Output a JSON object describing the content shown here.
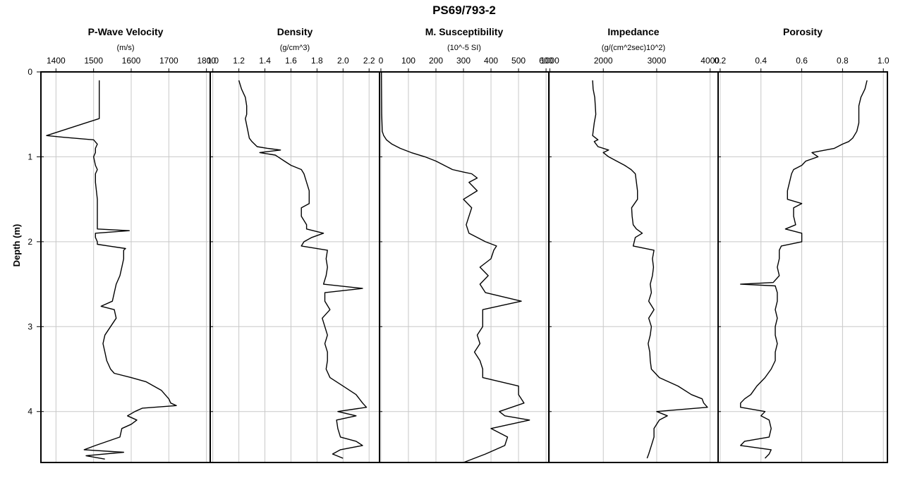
{
  "chart_data": {
    "type": "line",
    "title": "PS69/793-2",
    "ylabel": "Depth (m)",
    "ylim": [
      0,
      4.6
    ],
    "yinvert": true,
    "yticks": [
      0,
      1,
      2,
      3,
      4
    ],
    "grid": true,
    "panels": [
      {
        "name": "P-Wave Velocity",
        "unit": "(m/s)",
        "xlim": [
          1360,
          1810
        ],
        "xticks": [
          1400,
          1500,
          1600,
          1700,
          1800
        ],
        "depth": [
          0.1,
          0.55,
          0.75,
          0.77,
          0.8,
          0.85,
          0.9,
          0.95,
          1.0,
          1.1,
          1.15,
          1.2,
          1.3,
          1.5,
          1.7,
          1.85,
          1.87,
          1.9,
          1.95,
          2.0,
          2.03,
          2.05,
          2.08,
          2.1,
          2.2,
          2.3,
          2.4,
          2.5,
          2.6,
          2.7,
          2.76,
          2.8,
          2.9,
          3.0,
          3.1,
          3.2,
          3.3,
          3.4,
          3.5,
          3.55,
          3.6,
          3.65,
          3.7,
          3.75,
          3.8,
          3.85,
          3.9,
          3.93,
          3.96,
          4.0,
          4.05,
          4.1,
          4.15,
          4.2,
          4.3,
          4.4,
          4.45,
          4.48,
          4.52,
          4.56
        ],
        "values": [
          1515,
          1515,
          1375,
          1420,
          1500,
          1510,
          1505,
          1505,
          1500,
          1505,
          1510,
          1505,
          1505,
          1510,
          1510,
          1510,
          1595,
          1505,
          1505,
          1510,
          1510,
          1540,
          1585,
          1580,
          1580,
          1575,
          1570,
          1560,
          1555,
          1550,
          1520,
          1555,
          1560,
          1545,
          1530,
          1525,
          1530,
          1535,
          1545,
          1555,
          1600,
          1640,
          1660,
          1680,
          1690,
          1700,
          1705,
          1720,
          1630,
          1610,
          1590,
          1615,
          1600,
          1575,
          1570,
          1505,
          1475,
          1580,
          1480,
          1530
        ]
      },
      {
        "name": "Density",
        "unit": "(g/cm^3)",
        "xlim": [
          0.98,
          2.28
        ],
        "xticks": [
          1.0,
          1.2,
          1.4,
          1.6,
          1.8,
          2.0,
          2.2
        ],
        "xtick_labels": [
          "1.0",
          "1.2",
          "1.4",
          "1.6",
          "1.8",
          "2.0",
          "2.2"
        ],
        "depth": [
          0.1,
          0.2,
          0.3,
          0.4,
          0.5,
          0.55,
          0.7,
          0.78,
          0.82,
          0.88,
          0.9,
          0.92,
          0.95,
          0.98,
          1.0,
          1.05,
          1.1,
          1.15,
          1.2,
          1.3,
          1.4,
          1.5,
          1.55,
          1.6,
          1.7,
          1.8,
          1.85,
          1.9,
          1.95,
          2.0,
          2.05,
          2.1,
          2.2,
          2.3,
          2.4,
          2.5,
          2.55,
          2.6,
          2.7,
          2.8,
          2.9,
          3.0,
          3.1,
          3.2,
          3.3,
          3.4,
          3.5,
          3.6,
          3.7,
          3.8,
          3.9,
          3.95,
          4.0,
          4.05,
          4.1,
          4.2,
          4.3,
          4.35,
          4.4,
          4.45,
          4.5,
          4.55
        ],
        "values": [
          1.2,
          1.22,
          1.25,
          1.26,
          1.26,
          1.25,
          1.27,
          1.28,
          1.3,
          1.34,
          1.42,
          1.52,
          1.36,
          1.48,
          1.5,
          1.55,
          1.6,
          1.68,
          1.7,
          1.72,
          1.74,
          1.74,
          1.74,
          1.68,
          1.68,
          1.72,
          1.72,
          1.85,
          1.76,
          1.7,
          1.68,
          1.88,
          1.87,
          1.88,
          1.87,
          1.85,
          2.15,
          1.86,
          1.86,
          1.9,
          1.84,
          1.86,
          1.88,
          1.86,
          1.88,
          1.88,
          1.87,
          1.9,
          2.0,
          2.1,
          2.15,
          2.18,
          1.96,
          2.1,
          1.95,
          1.96,
          1.98,
          2.1,
          2.15,
          1.98,
          1.92,
          2.0
        ]
      },
      {
        "name": "M. Susceptibility",
        "unit": "(10^-5 SI)",
        "xlim": [
          -5,
          610
        ],
        "xticks": [
          0,
          100,
          200,
          300,
          400,
          500,
          600
        ],
        "depth": [
          0.0,
          0.5,
          0.7,
          0.75,
          0.8,
          0.85,
          0.9,
          0.95,
          1.0,
          1.05,
          1.1,
          1.15,
          1.18,
          1.2,
          1.25,
          1.3,
          1.4,
          1.5,
          1.6,
          1.7,
          1.8,
          1.9,
          2.0,
          2.05,
          2.1,
          2.2,
          2.3,
          2.4,
          2.5,
          2.6,
          2.7,
          2.8,
          2.9,
          3.0,
          3.1,
          3.2,
          3.3,
          3.4,
          3.5,
          3.6,
          3.7,
          3.8,
          3.9,
          4.0,
          4.05,
          4.1,
          4.2,
          4.3,
          4.4,
          4.5,
          4.6
        ],
        "values": [
          2,
          3,
          5,
          10,
          20,
          40,
          70,
          110,
          160,
          200,
          230,
          260,
          300,
          330,
          350,
          320,
          350,
          300,
          330,
          320,
          310,
          320,
          380,
          420,
          410,
          400,
          360,
          390,
          360,
          380,
          510,
          370,
          370,
          370,
          350,
          360,
          340,
          360,
          370,
          370,
          500,
          500,
          520,
          430,
          450,
          540,
          400,
          460,
          450,
          380,
          300
        ]
      },
      {
        "name": "Impedance",
        "unit": "(g/(cm^2sec)10^2)",
        "xlim": [
          980,
          4150
        ],
        "xticks": [
          1000,
          2000,
          3000,
          4000
        ],
        "depth": [
          0.1,
          0.2,
          0.3,
          0.4,
          0.5,
          0.6,
          0.75,
          0.8,
          0.82,
          0.88,
          0.92,
          0.95,
          1.0,
          1.05,
          1.1,
          1.15,
          1.2,
          1.3,
          1.4,
          1.5,
          1.6,
          1.7,
          1.8,
          1.85,
          1.9,
          1.95,
          2.0,
          2.05,
          2.1,
          2.2,
          2.3,
          2.4,
          2.5,
          2.6,
          2.7,
          2.8,
          2.9,
          3.0,
          3.1,
          3.2,
          3.3,
          3.4,
          3.5,
          3.6,
          3.7,
          3.8,
          3.85,
          3.9,
          3.95,
          4.0,
          4.05,
          4.1,
          4.2,
          4.3,
          4.4,
          4.5,
          4.55
        ],
        "values": [
          1800,
          1810,
          1840,
          1850,
          1860,
          1830,
          1800,
          1900,
          1830,
          1900,
          2100,
          2000,
          2100,
          2250,
          2400,
          2520,
          2600,
          2620,
          2640,
          2640,
          2530,
          2540,
          2560,
          2620,
          2730,
          2600,
          2580,
          2560,
          2950,
          2920,
          2940,
          2920,
          2880,
          2900,
          2850,
          2950,
          2850,
          2900,
          2880,
          2840,
          2870,
          2880,
          2900,
          3050,
          3400,
          3650,
          3850,
          3880,
          3950,
          3000,
          3200,
          3050,
          2950,
          2950,
          2900,
          2850,
          2820
        ]
      },
      {
        "name": "Porosity",
        "unit": "",
        "xlim": [
          0.19,
          1.02
        ],
        "xticks": [
          0.2,
          0.4,
          0.6,
          0.8,
          1.0
        ],
        "xtick_labels": [
          "0.2",
          "0.4",
          "0.6",
          "0.8",
          "1.0"
        ],
        "depth": [
          0.1,
          0.2,
          0.3,
          0.4,
          0.5,
          0.6,
          0.7,
          0.78,
          0.82,
          0.85,
          0.9,
          0.95,
          1.0,
          1.05,
          1.1,
          1.15,
          1.2,
          1.3,
          1.4,
          1.5,
          1.55,
          1.6,
          1.7,
          1.8,
          1.85,
          1.9,
          2.0,
          2.05,
          2.1,
          2.2,
          2.3,
          2.4,
          2.48,
          2.5,
          2.52,
          2.6,
          2.7,
          2.8,
          2.9,
          3.0,
          3.1,
          3.2,
          3.3,
          3.4,
          3.5,
          3.6,
          3.7,
          3.8,
          3.85,
          3.9,
          3.95,
          4.0,
          4.05,
          4.1,
          4.2,
          4.3,
          4.35,
          4.4,
          4.45,
          4.5,
          4.55
        ],
        "values": [
          0.92,
          0.91,
          0.89,
          0.88,
          0.88,
          0.88,
          0.87,
          0.85,
          0.83,
          0.8,
          0.76,
          0.65,
          0.68,
          0.62,
          0.6,
          0.56,
          0.55,
          0.54,
          0.53,
          0.53,
          0.6,
          0.56,
          0.56,
          0.57,
          0.52,
          0.6,
          0.6,
          0.5,
          0.49,
          0.49,
          0.48,
          0.49,
          0.46,
          0.3,
          0.47,
          0.48,
          0.48,
          0.47,
          0.48,
          0.47,
          0.47,
          0.48,
          0.47,
          0.47,
          0.45,
          0.42,
          0.38,
          0.35,
          0.32,
          0.3,
          0.3,
          0.42,
          0.4,
          0.44,
          0.45,
          0.44,
          0.32,
          0.3,
          0.45,
          0.44,
          0.42
        ]
      }
    ]
  }
}
